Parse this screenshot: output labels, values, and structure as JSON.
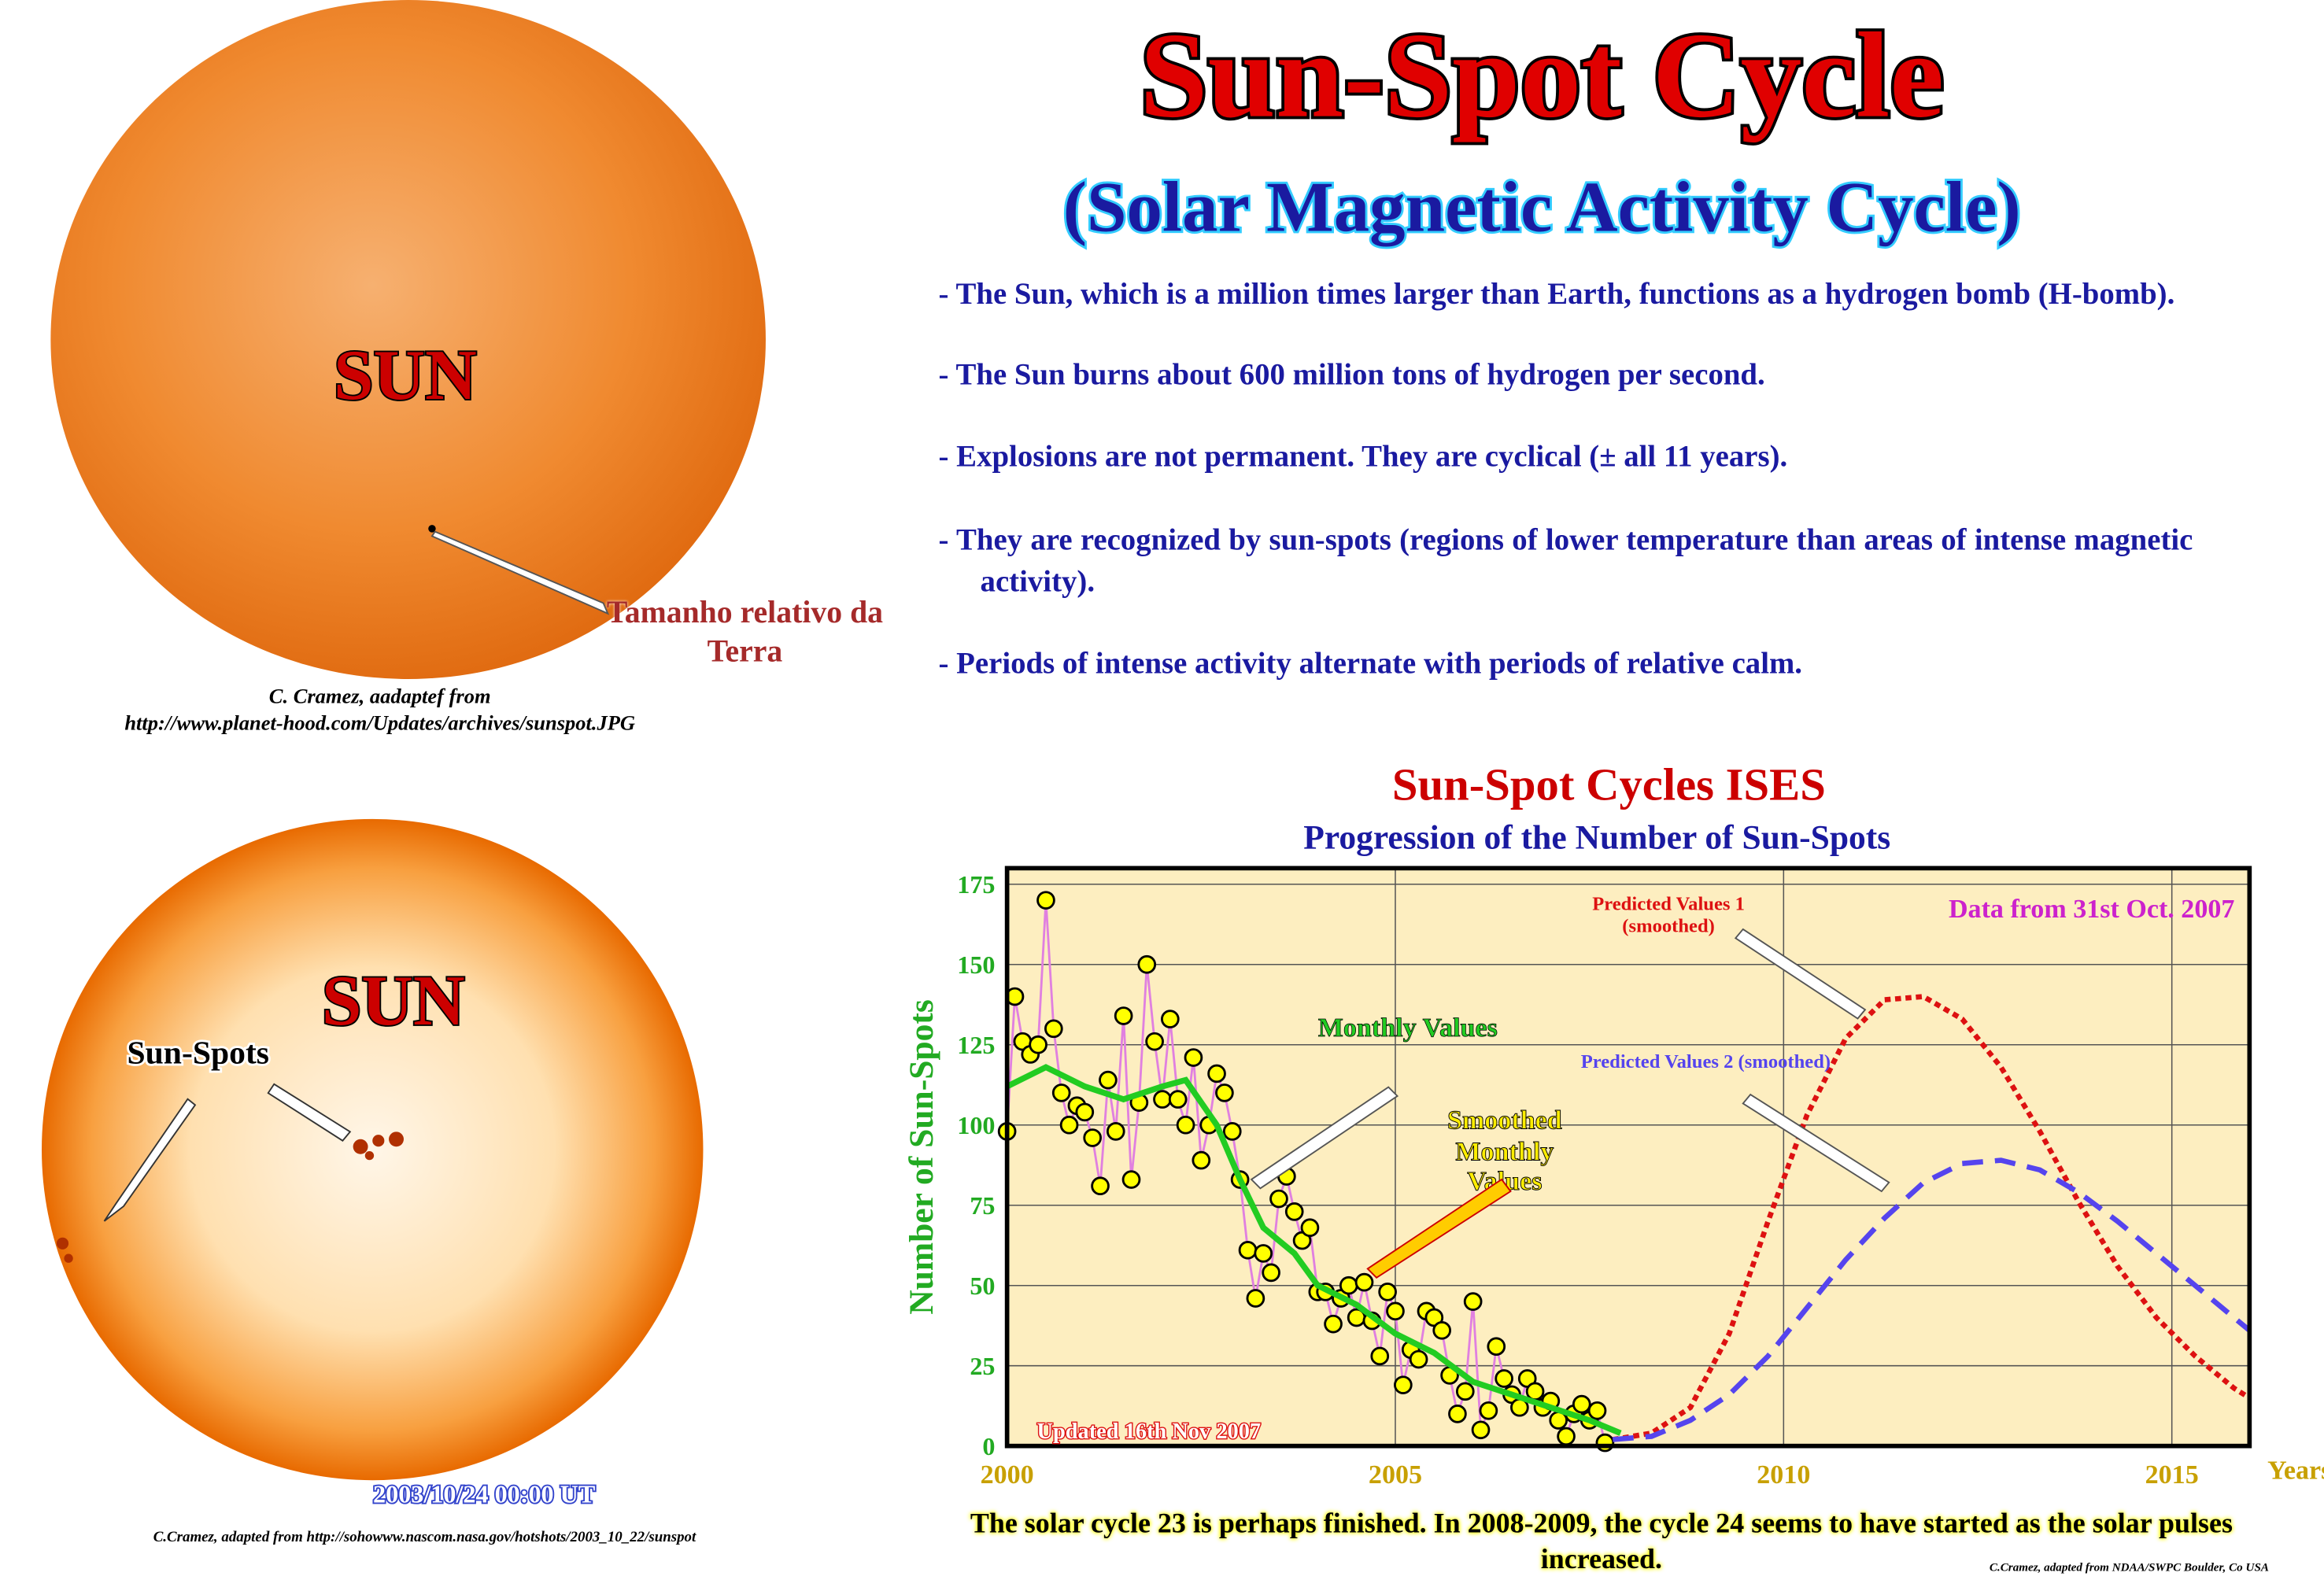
{
  "header": {
    "title": "Sun-Spot Cycle",
    "subtitle": "(Solar Magnetic Activity Cycle)"
  },
  "bullets": [
    "- The Sun, which is a million times larger than Earth, functions as a hydrogen bomb (H-bomb).",
    "- The Sun burns about 600 million tons of hydrogen per second.",
    "- Explosions are not permanent. They are cyclical (± all 11 years).",
    "- They are recognized by sun-spots (regions of lower temperature than areas of intense magnetic activity).",
    "- Periods of intense activity alternate with periods of relative calm."
  ],
  "image_top": {
    "label": "SUN",
    "pointer": "Tamanho relativo da Terra",
    "credit1": "C. Cramez, aadaptef from",
    "credit2": "http://www.planet-hood.com/Updates/archives/sunspot.JPG"
  },
  "image_bottom": {
    "label": "SUN",
    "pointer": "Sun-Spots",
    "timestamp": "2003/10/24 00:00 UT",
    "credit": "C.Cramez, adapted from http://sohowww.nascom.nasa.gov/hotshots/2003_10_22/sunspot"
  },
  "chart_data": {
    "type": "line",
    "title": "Sun-Spot Cycles ISES",
    "subtitle": "Progression of the Number of Sun-Spots",
    "ylabel": "Number of Sun-Spots",
    "xlabel": "Years",
    "xlim": [
      2000,
      2016
    ],
    "xticks": [
      2000,
      2005,
      2010,
      2015
    ],
    "ylim": [
      0,
      180
    ],
    "yticks": [
      0,
      25,
      50,
      75,
      100,
      125,
      150,
      175
    ],
    "grid": true,
    "annotations": [
      "Data from 31st Oct. 2007",
      "Updated 16th Nov 2007"
    ],
    "series": [
      {
        "name": "Monthly Values",
        "color": "#e080e0",
        "marker_color": "#ffff00",
        "style": "solid",
        "markers": true,
        "x": [
          2000.0,
          2000.1,
          2000.2,
          2000.3,
          2000.4,
          2000.5,
          2000.6,
          2000.7,
          2000.8,
          2000.9,
          2001.0,
          2001.1,
          2001.2,
          2001.3,
          2001.4,
          2001.5,
          2001.6,
          2001.7,
          2001.8,
          2001.9,
          2002.0,
          2002.1,
          2002.2,
          2002.3,
          2002.4,
          2002.5,
          2002.6,
          2002.7,
          2002.8,
          2002.9,
          2003.0,
          2003.1,
          2003.2,
          2003.3,
          2003.4,
          2003.5,
          2003.6,
          2003.7,
          2003.8,
          2003.9,
          2004.0,
          2004.1,
          2004.2,
          2004.3,
          2004.4,
          2004.5,
          2004.6,
          2004.7,
          2004.8,
          2004.9,
          2005.0,
          2005.1,
          2005.2,
          2005.3,
          2005.4,
          2005.5,
          2005.6,
          2005.7,
          2005.8,
          2005.9,
          2006.0,
          2006.1,
          2006.2,
          2006.3,
          2006.4,
          2006.5,
          2006.6,
          2006.7,
          2006.8,
          2006.9,
          2007.0,
          2007.1,
          2007.2,
          2007.3,
          2007.4,
          2007.5,
          2007.6,
          2007.7
        ],
        "values": [
          98,
          140,
          126,
          122,
          125,
          170,
          130,
          110,
          100,
          106,
          104,
          96,
          81,
          114,
          98,
          134,
          83,
          107,
          150,
          126,
          108,
          133,
          108,
          100,
          121,
          89,
          100,
          116,
          110,
          98,
          83,
          61,
          46,
          60,
          54,
          77,
          84,
          73,
          64,
          68,
          48,
          48,
          38,
          46,
          50,
          40,
          51,
          39,
          28,
          48,
          42,
          19,
          30,
          27,
          42,
          40,
          36,
          22,
          10,
          17,
          45,
          5,
          11,
          31,
          21,
          16,
          12,
          21,
          17,
          12,
          14,
          8,
          3,
          10,
          13,
          8,
          11,
          1
        ]
      },
      {
        "name": "Smoothed Monthly Values",
        "color": "#22cc22",
        "style": "solid",
        "markers": false,
        "x": [
          2000.0,
          2000.5,
          2001.0,
          2001.5,
          2002.0,
          2002.3,
          2002.7,
          2003.0,
          2003.3,
          2003.7,
          2004.0,
          2004.5,
          2005.0,
          2005.5,
          2006.0,
          2006.5,
          2007.0,
          2007.5,
          2007.9
        ],
        "values": [
          112,
          118,
          112,
          108,
          112,
          114,
          100,
          83,
          68,
          60,
          50,
          44,
          35,
          29,
          20,
          16,
          12,
          8,
          4
        ]
      },
      {
        "name": "Predicted Values 1 (smoothed)",
        "color": "#dd1111",
        "style": "dotted",
        "markers": false,
        "x": [
          2007.8,
          2008.3,
          2008.8,
          2009.3,
          2009.8,
          2010.3,
          2010.8,
          2011.3,
          2011.8,
          2012.3,
          2012.8,
          2013.3,
          2013.8,
          2014.3,
          2014.8,
          2015.3,
          2015.8,
          2016.0
        ],
        "values": [
          2,
          4,
          12,
          35,
          70,
          103,
          127,
          139,
          140,
          133,
          118,
          98,
          76,
          56,
          40,
          28,
          18,
          15
        ]
      },
      {
        "name": "Predicted Values 2 (smoothed)",
        "color": "#5544ee",
        "style": "dashed",
        "markers": false,
        "x": [
          2007.8,
          2008.3,
          2008.8,
          2009.3,
          2009.8,
          2010.3,
          2010.8,
          2011.3,
          2011.8,
          2012.3,
          2012.8,
          2013.3,
          2013.8,
          2014.3,
          2014.8,
          2015.3,
          2015.8,
          2016.0
        ],
        "values": [
          2,
          3,
          8,
          16,
          28,
          43,
          58,
          71,
          82,
          88,
          89,
          86,
          79,
          70,
          60,
          50,
          40,
          36
        ]
      }
    ],
    "caption": "The solar cycle 23 is perhaps finished. In 2008-2009, the cycle 24 seems to have started as the solar pulses increased.",
    "credit": "C.Cramez, adapted from NDAA/SWPC Boulder, Co USA"
  }
}
